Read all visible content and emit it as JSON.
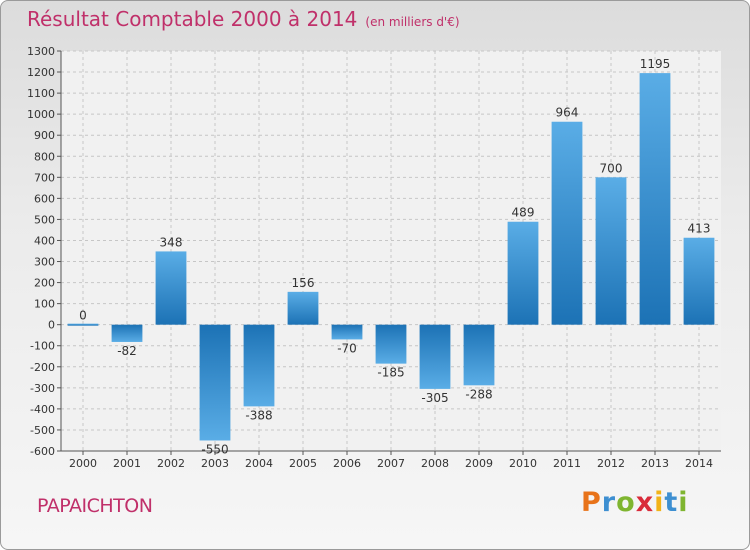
{
  "header": {
    "title": "Résultat Comptable 2000 à 2014",
    "unit": "(en milliers d'€)"
  },
  "commune": "PAPAICHTON",
  "logo": {
    "text": "Proxiti",
    "colors": [
      "#e8731a",
      "#3d8fd1",
      "#7fb530",
      "#d92b3a",
      "#f2b318",
      "#3d8fd1",
      "#7fb530"
    ]
  },
  "chart_data": {
    "type": "bar",
    "categories": [
      "2000",
      "2001",
      "2002",
      "2003",
      "2004",
      "2005",
      "2006",
      "2007",
      "2008",
      "2009",
      "2010",
      "2011",
      "2012",
      "2013",
      "2014"
    ],
    "values": [
      0,
      -82,
      348,
      -550,
      -388,
      156,
      -70,
      -185,
      -305,
      -288,
      489,
      964,
      700,
      1195,
      413
    ],
    "ylim": [
      -600,
      1300
    ],
    "yticks": [
      -600,
      -500,
      -400,
      -300,
      -200,
      -100,
      0,
      100,
      200,
      300,
      400,
      500,
      600,
      700,
      800,
      900,
      1000,
      1100,
      1200,
      1300
    ],
    "grid": true,
    "colors": {
      "bar_light": "#5aade6",
      "bar_dark": "#1c72b5"
    }
  }
}
